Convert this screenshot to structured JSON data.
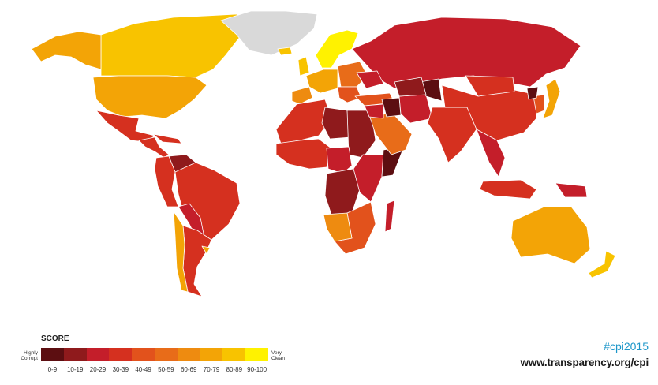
{
  "legend": {
    "title": "SCORE",
    "low_label": "Highly Corrupt",
    "high_label": "Very Clean",
    "bands": [
      "0-9",
      "10-19",
      "20-29",
      "30-39",
      "40-49",
      "50-59",
      "60-69",
      "70-79",
      "80-89",
      "90-100"
    ],
    "colors": [
      "#5c0e11",
      "#8f1a1c",
      "#c41e2a",
      "#d5301f",
      "#e2521c",
      "#e86c19",
      "#ee8b10",
      "#f3a406",
      "#f8c300",
      "#fff200"
    ]
  },
  "footer": {
    "hashtag": "#cpi2015",
    "url": "www.transparency.org/cpi"
  },
  "map": {
    "no_data_color": "#d9d9d9",
    "border_color": "#ffffff",
    "regions": [
      {
        "name": "canada",
        "band": 8
      },
      {
        "name": "alaska",
        "band": 7
      },
      {
        "name": "usa",
        "band": 7
      },
      {
        "name": "greenland",
        "band": -1
      },
      {
        "name": "mexico",
        "band": 3
      },
      {
        "name": "central-america",
        "band": 3
      },
      {
        "name": "caribbean",
        "band": 3
      },
      {
        "name": "venezuela",
        "band": 1
      },
      {
        "name": "colombia-peru",
        "band": 3
      },
      {
        "name": "brazil",
        "band": 3
      },
      {
        "name": "bolivia-paraguay",
        "band": 2
      },
      {
        "name": "argentina",
        "band": 3
      },
      {
        "name": "chile",
        "band": 7
      },
      {
        "name": "uruguay",
        "band": 7
      },
      {
        "name": "iceland",
        "band": 8
      },
      {
        "name": "uk-ireland",
        "band": 8
      },
      {
        "name": "scandinavia",
        "band": 9
      },
      {
        "name": "western-europe",
        "band": 7
      },
      {
        "name": "iberia",
        "band": 6
      },
      {
        "name": "eastern-europe",
        "band": 5
      },
      {
        "name": "balkans",
        "band": 4
      },
      {
        "name": "russia",
        "band": 2
      },
      {
        "name": "ukraine",
        "band": 2
      },
      {
        "name": "turkey",
        "band": 4
      },
      {
        "name": "north-africa",
        "band": 3
      },
      {
        "name": "libya",
        "band": 1
      },
      {
        "name": "sudan",
        "band": 1
      },
      {
        "name": "west-africa",
        "band": 3
      },
      {
        "name": "central-africa",
        "band": 2
      },
      {
        "name": "drc",
        "band": 1
      },
      {
        "name": "east-africa",
        "band": 2
      },
      {
        "name": "somalia",
        "band": 0
      },
      {
        "name": "southern-africa",
        "band": 4
      },
      {
        "name": "botswana-namibia",
        "band": 6
      },
      {
        "name": "madagascar",
        "band": 2
      },
      {
        "name": "arabia",
        "band": 5
      },
      {
        "name": "middle-east",
        "band": 2
      },
      {
        "name": "iraq-syria",
        "band": 0
      },
      {
        "name": "iran",
        "band": 2
      },
      {
        "name": "afghanistan",
        "band": 0
      },
      {
        "name": "central-asia",
        "band": 1
      },
      {
        "name": "india",
        "band": 3
      },
      {
        "name": "china",
        "band": 3
      },
      {
        "name": "mongolia",
        "band": 3
      },
      {
        "name": "southeast-asia",
        "band": 2
      },
      {
        "name": "korea",
        "band": 4
      },
      {
        "name": "north-korea",
        "band": 0
      },
      {
        "name": "japan",
        "band": 7
      },
      {
        "name": "indonesia",
        "band": 3
      },
      {
        "name": "papua",
        "band": 2
      },
      {
        "name": "australia",
        "band": 7
      },
      {
        "name": "new-zealand",
        "band": 8
      }
    ]
  }
}
